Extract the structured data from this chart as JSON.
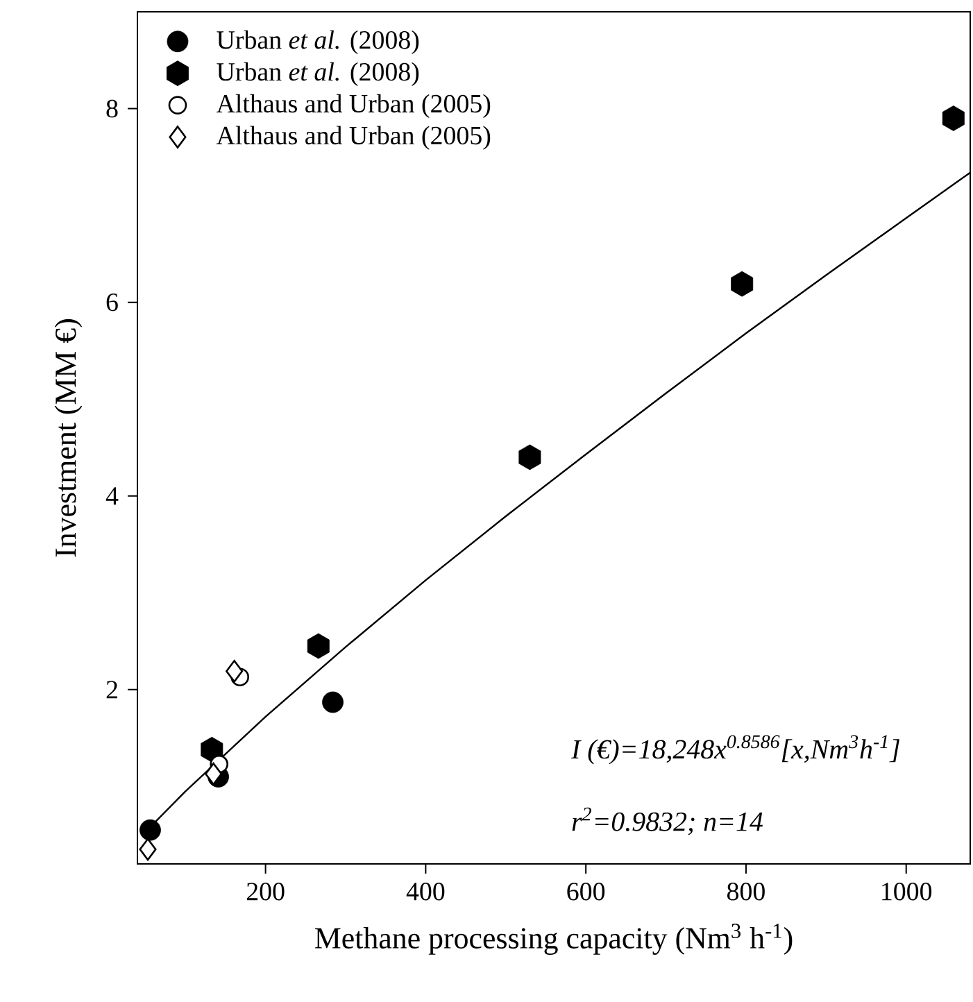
{
  "chart_data": {
    "type": "scatter",
    "xlabel": "Methane processing capacity (Nm$^{3}$ h$^{-1}$)",
    "ylabel": "Investment (MM €)",
    "xlim": [
      40,
      1080
    ],
    "ylim": [
      0.2,
      9.0
    ],
    "xticks": [
      200,
      400,
      600,
      800,
      1000
    ],
    "yticks": [
      2,
      4,
      6,
      8
    ],
    "legend": "top left",
    "annotations": [
      "I (€)=18,248x$^{0.8586}$[x,Nm$^{3}$h$^{-1}$]",
      "r$^{2}$=0.9832; n=14"
    ],
    "series": [
      {
        "name": "Urban *et al.* (2008)",
        "color": "#000000",
        "marker": "circle",
        "x": [
          56,
          141,
          284
        ],
        "values": [
          0.55,
          1.1,
          1.87
        ]
      },
      {
        "name": "Urban *et al.* (2008)",
        "color": "#000000",
        "x": [
          133,
          266,
          530,
          795,
          1059
        ],
        "values": [
          1.38,
          2.45,
          4.4,
          6.19,
          7.9
        ]
      },
      {
        "name": "Althaus and Urban (2005)",
        "color": "#000000",
        "marker": "circle-open",
        "x": [
          142,
          168
        ],
        "values": [
          1.23,
          2.13
        ]
      },
      {
        "name": "Althaus and Urban (2005)",
        "color": "#000000",
        "marker": "diamond-open",
        "x": [
          53,
          135,
          161
        ],
        "values": [
          0.35,
          1.13,
          2.19
        ]
      },
      {
        "type": "line",
        "color": "#000000",
        "marker": "none",
        "x": [
          50,
          100,
          200,
          300,
          400,
          500,
          600,
          700,
          800,
          900,
          1000,
          1080
        ],
        "values": [
          0.53,
          0.95,
          1.72,
          2.44,
          3.13,
          3.79,
          4.43,
          5.06,
          5.68,
          6.28,
          6.87,
          7.34
        ]
      }
    ]
  }
}
